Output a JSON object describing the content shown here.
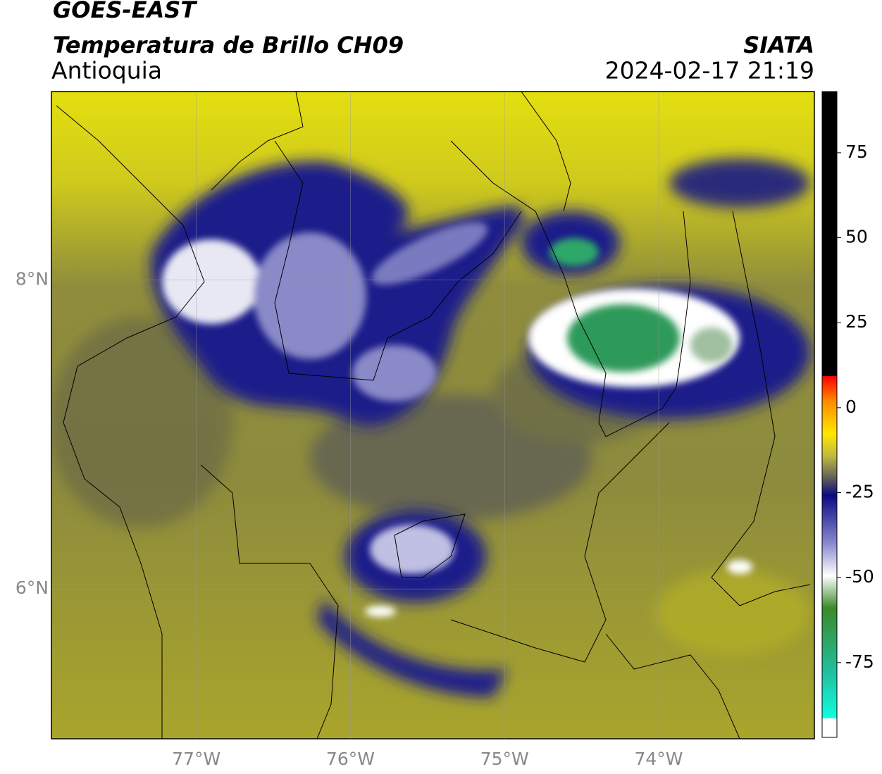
{
  "header": {
    "title": "GOES-EAST",
    "subtitle": "Temperatura de Brillo CH09",
    "region": "Antioquia",
    "source": "SIATA",
    "datetime": "2024-02-17 21:19"
  },
  "map": {
    "lonlim": [
      -77.94,
      -72.99
    ],
    "latlim": [
      5.03,
      9.22
    ],
    "lon_ticks": [
      {
        "value": -77,
        "label": "77°W"
      },
      {
        "value": -76,
        "label": "76°W"
      },
      {
        "value": -75,
        "label": "75°W"
      },
      {
        "value": -74,
        "label": "74°W"
      }
    ],
    "lat_ticks": [
      {
        "value": 8,
        "label": "8°N"
      },
      {
        "value": 6,
        "label": "6°N"
      }
    ]
  },
  "colorbar": {
    "lim": [
      -97,
      93
    ],
    "ticks": [
      75,
      50,
      25,
      0,
      -25,
      -50,
      -75
    ]
  }
}
